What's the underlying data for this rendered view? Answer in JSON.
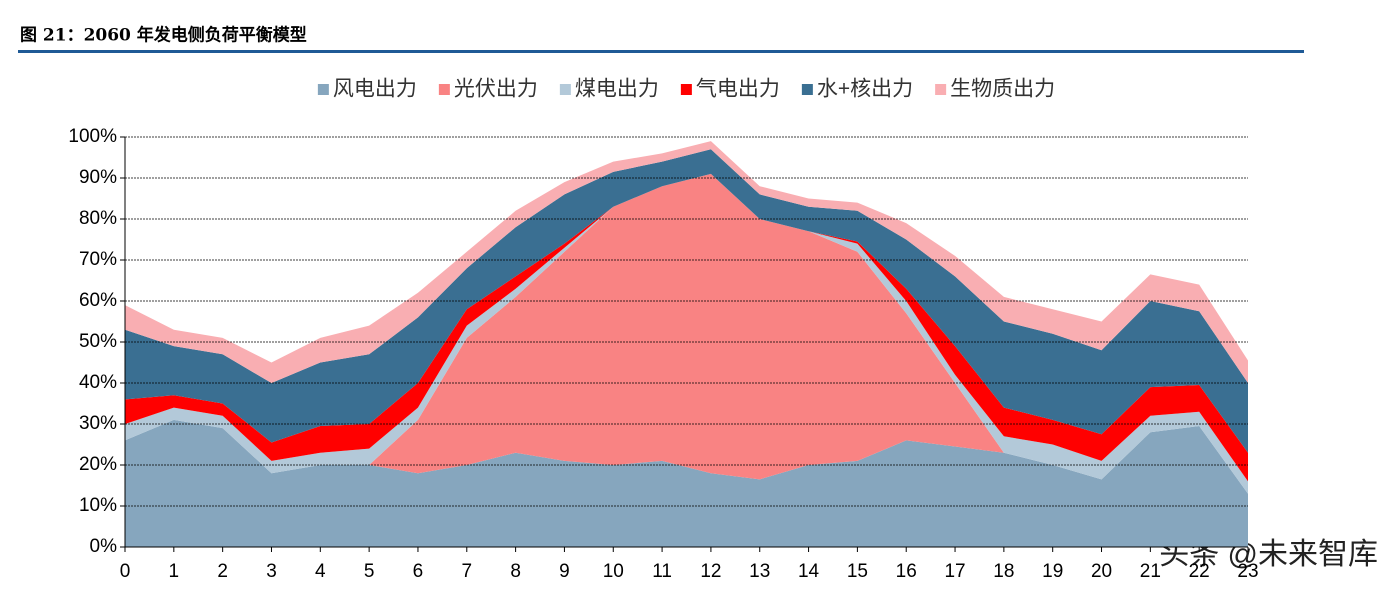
{
  "chart_data": {
    "type": "stacked-area",
    "title": "图 21：2060 年发电侧负荷平衡模型",
    "watermark": "头条 @未来智库",
    "x": [
      0,
      1,
      2,
      3,
      4,
      5,
      6,
      7,
      8,
      9,
      10,
      11,
      12,
      13,
      14,
      15,
      16,
      17,
      18,
      19,
      20,
      21,
      22,
      23
    ],
    "xlim": [
      0,
      23
    ],
    "xticks": [
      0,
      1,
      2,
      3,
      4,
      5,
      6,
      7,
      8,
      9,
      10,
      11,
      12,
      13,
      14,
      15,
      16,
      17,
      18,
      19,
      20,
      21,
      22,
      23
    ],
    "ylim": [
      0,
      100
    ],
    "yticks": [
      {
        "value": 0,
        "label": "0%"
      },
      {
        "value": 10,
        "label": "10%"
      },
      {
        "value": 20,
        "label": "20%"
      },
      {
        "value": 30,
        "label": "30%"
      },
      {
        "value": 40,
        "label": "40%"
      },
      {
        "value": 50,
        "label": "50%"
      },
      {
        "value": 60,
        "label": "60%"
      },
      {
        "value": 70,
        "label": "70%"
      },
      {
        "value": 80,
        "label": "80%"
      },
      {
        "value": 90,
        "label": "90%"
      },
      {
        "value": 100,
        "label": "100%"
      }
    ],
    "grid": true,
    "legend": "top",
    "series": [
      {
        "name": "风电出力",
        "color": "#86a6be",
        "values": [
          26,
          31,
          29,
          18,
          20,
          20,
          18,
          20,
          23,
          21,
          20,
          21,
          18,
          16.5,
          20,
          21,
          26,
          24.5,
          23,
          20,
          16.5,
          28,
          29.5,
          13
        ]
      },
      {
        "name": "光伏出力",
        "color": "#f98383",
        "values": [
          0,
          0,
          0,
          0,
          0,
          0,
          13,
          31,
          38,
          51,
          63,
          67,
          73,
          63.5,
          57,
          51,
          31,
          15.5,
          0,
          0,
          0,
          0,
          0,
          0
        ]
      },
      {
        "name": "煤电出力",
        "color": "#b3c9d9",
        "values": [
          4,
          3,
          3,
          3,
          3,
          4,
          3,
          3,
          2,
          1,
          0,
          0,
          0,
          0,
          0,
          2,
          3,
          2,
          4,
          5,
          4.5,
          4,
          3.5,
          3
        ]
      },
      {
        "name": "气电出力",
        "color": "#ff0000",
        "values": [
          6,
          3,
          3,
          4.5,
          6.5,
          6,
          6,
          4,
          3,
          1,
          0,
          0,
          0,
          0,
          0,
          0.5,
          3,
          7,
          7,
          6,
          6.5,
          7,
          6.5,
          7
        ]
      },
      {
        "name": "水+核出力",
        "color": "#3a6f92",
        "values": [
          17,
          12,
          12,
          14.5,
          15.5,
          17,
          16,
          10,
          12,
          12,
          8.5,
          6,
          6,
          6,
          6,
          7.5,
          12,
          17,
          21,
          21,
          20.5,
          21,
          18,
          17
        ]
      },
      {
        "name": "生物质出力",
        "color": "#f9aeb2",
        "values": [
          6,
          4,
          4,
          5,
          6,
          7,
          6,
          4,
          4,
          3,
          2.5,
          2,
          2,
          2,
          2,
          2,
          4,
          5,
          6,
          6,
          7,
          6.5,
          6.5,
          5.5
        ]
      }
    ]
  }
}
